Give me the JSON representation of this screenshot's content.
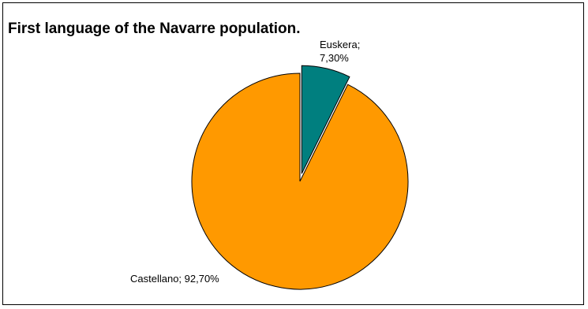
{
  "chart_data": {
    "type": "pie",
    "title": "First language of the Navarre population.",
    "slices": [
      {
        "name": "Euskera",
        "value": 7.3,
        "label_line1": "Euskera;",
        "label_line2": "7,30%",
        "color": "#007f7f",
        "exploded": true
      },
      {
        "name": "Castellano",
        "value": 92.7,
        "label_line1": "Castellano; 92,70%",
        "label_line2": "",
        "color": "#ff9900",
        "exploded": false
      }
    ],
    "legend": "none"
  }
}
